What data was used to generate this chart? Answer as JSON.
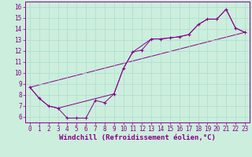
{
  "xlabel": "Windchill (Refroidissement éolien,°C)",
  "bg_color": "#cceedd",
  "line_color": "#880088",
  "xlim": [
    -0.5,
    23.5
  ],
  "ylim": [
    5.5,
    16.5
  ],
  "xticks": [
    0,
    1,
    2,
    3,
    4,
    5,
    6,
    7,
    8,
    9,
    10,
    11,
    12,
    13,
    14,
    15,
    16,
    17,
    18,
    19,
    20,
    21,
    22,
    23
  ],
  "yticks": [
    6,
    7,
    8,
    9,
    10,
    11,
    12,
    13,
    14,
    15,
    16
  ],
  "series1_x": [
    0,
    1,
    2,
    3,
    4,
    5,
    6,
    7,
    8,
    9,
    10,
    11,
    12,
    13,
    14,
    15,
    16,
    17,
    18,
    19,
    20,
    21,
    22,
    23
  ],
  "series1_y": [
    8.7,
    7.7,
    7.0,
    6.8,
    5.9,
    5.9,
    5.9,
    7.5,
    7.3,
    8.1,
    10.4,
    11.9,
    12.1,
    13.1,
    13.1,
    13.2,
    13.3,
    13.5,
    14.4,
    14.9,
    14.9,
    15.8,
    14.1,
    13.7
  ],
  "smooth_x": [
    0,
    1,
    2,
    3,
    9,
    10,
    11,
    13,
    14,
    15,
    16,
    17,
    18,
    19,
    20,
    21,
    22,
    23
  ],
  "smooth_y": [
    8.7,
    7.7,
    7.0,
    6.8,
    8.1,
    10.4,
    11.9,
    13.1,
    13.1,
    13.2,
    13.3,
    13.5,
    14.4,
    14.9,
    14.9,
    15.8,
    14.1,
    13.7
  ],
  "trend_x": [
    0,
    23
  ],
  "trend_y": [
    8.7,
    13.7
  ],
  "grid_color": "#aaddcc",
  "tick_fontsize": 5.5,
  "xlabel_fontsize": 6.5
}
